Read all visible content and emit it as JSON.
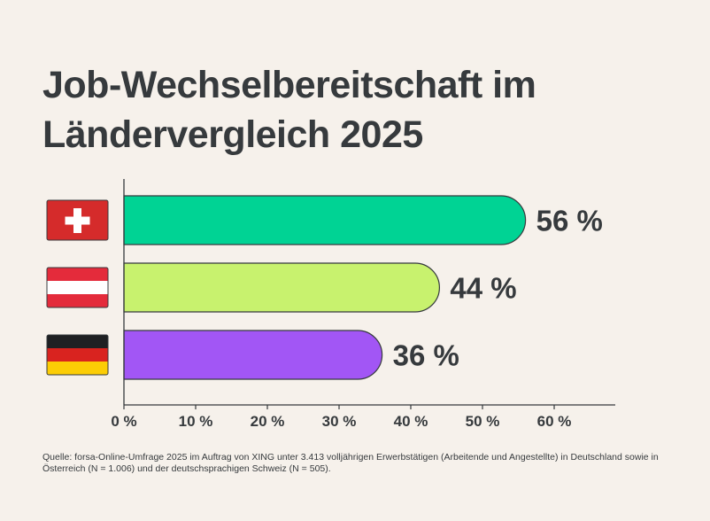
{
  "chart_data": {
    "type": "bar",
    "orientation": "horizontal",
    "title": [
      "Job-Wechselbereitschaft im",
      "Ländervergleich 2025"
    ],
    "categories": [
      "Schweiz",
      "Österreich",
      "Deutschland"
    ],
    "flag_icons": [
      "flag-switzerland-icon",
      "flag-austria-icon",
      "flag-germany-icon"
    ],
    "values": [
      56,
      44,
      36
    ],
    "data_labels": [
      "56 %",
      "44 %",
      "36 %"
    ],
    "colors": [
      "#00d394",
      "#c8f26e",
      "#a256f5"
    ],
    "xlim": [
      0,
      68
    ],
    "xticks": [
      0,
      10,
      20,
      30,
      40,
      50,
      60
    ],
    "xtick_labels": [
      "0 %",
      "10 %",
      "20 %",
      "30 %",
      "40 %",
      "50 %",
      "60 %"
    ],
    "xlabel": "",
    "ylabel": "",
    "grid": false,
    "legend": "none"
  },
  "source": "Quelle: forsa-Online-Umfrage 2025 im Auftrag von XING unter 3.413 volljährigen Erwerbstätigen (Arbeitende und Angestellte) in Deutschland sowie in Österreich (N = 1.006) und der deutschsprachigen Schweiz (N = 505)."
}
